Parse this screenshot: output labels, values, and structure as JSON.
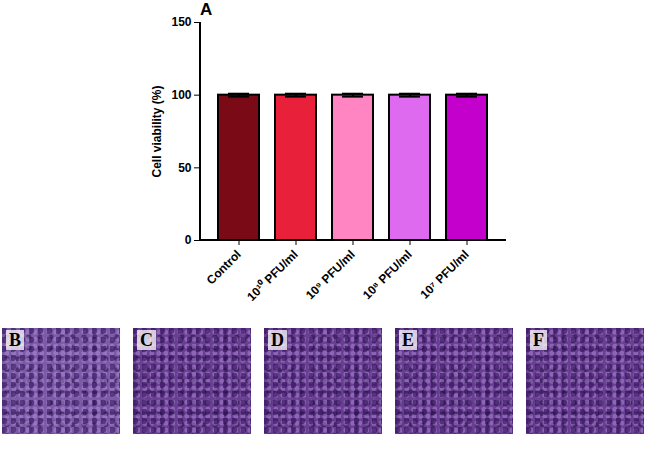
{
  "chart_data": {
    "type": "bar",
    "panel": "A",
    "ylabel": "Cell viability (%)",
    "categories": [
      "Control",
      "10¹⁰ PFU/ml",
      "10⁹ PFU/ml",
      "10⁸ PFU/ml",
      "10⁷ PFU/ml"
    ],
    "values": [
      100,
      100,
      100,
      100,
      100
    ],
    "errors": [
      1,
      1,
      1,
      1,
      1
    ],
    "colors": [
      "#7b0a17",
      "#e8203a",
      "#ff85c2",
      "#de6af0",
      "#c400cc"
    ],
    "ylim": [
      0,
      150
    ],
    "yticks": [
      0,
      50,
      100,
      150
    ],
    "grid": false
  },
  "image_panels": [
    "B",
    "C",
    "D",
    "E",
    "F"
  ]
}
